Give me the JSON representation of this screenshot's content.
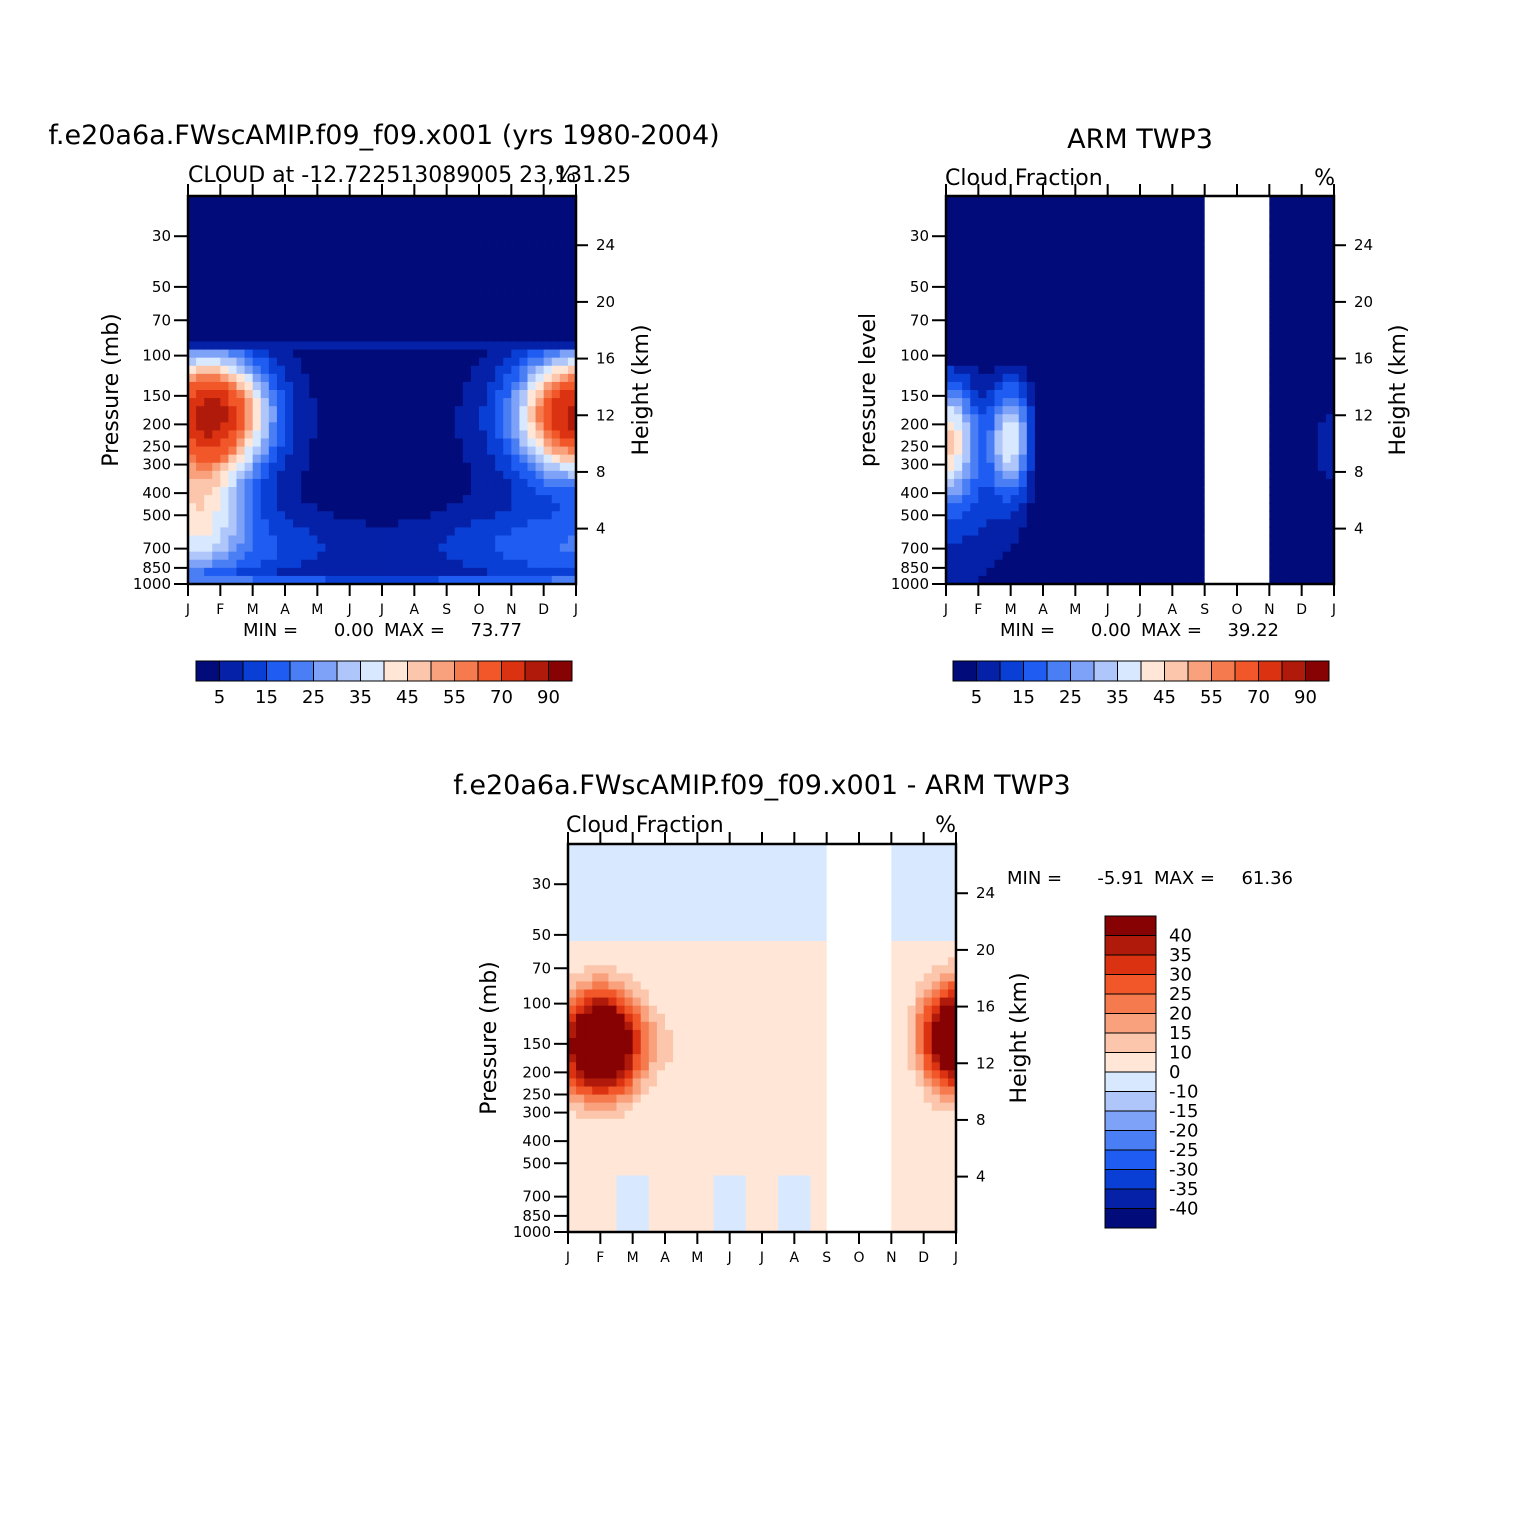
{
  "colors": {
    "seq": [
      "#020b7a",
      "#0421a8",
      "#0a3fd6",
      "#1f5cf2",
      "#4a7ef5",
      "#7ea2f7",
      "#aec6fa",
      "#d8e8fe",
      "#ffe6d6",
      "#fcc6ac",
      "#f9a07c",
      "#f57b4f",
      "#f2572a",
      "#db3312",
      "#b01a0a",
      "#870202"
    ],
    "diff": [
      "#870202",
      "#b01a0a",
      "#db3312",
      "#f2572a",
      "#f57b4f",
      "#f9a07c",
      "#fcc6ac",
      "#ffe6d6",
      "#d8e8fe",
      "#aec6fa",
      "#7ea2f7",
      "#4a7ef5",
      "#1f5cf2",
      "#0a3fd6",
      "#0421a8",
      "#020b7a"
    ]
  },
  "chart_data": [
    {
      "type": "heatmap",
      "id": "model",
      "title": "f.e20a6a.FWscAMIP.f09_f09.x001 (yrs 1980-2004)",
      "subtitle": "CLOUD at -12.722513089005 23,131.25",
      "units_label": "%",
      "ylabel": "Pressure (mb)",
      "ylabel_right": "Height (km)",
      "x_ticks": [
        "J",
        "F",
        "M",
        "A",
        "M",
        "J",
        "J",
        "A",
        "S",
        "O",
        "N",
        "D",
        "J"
      ],
      "y_ticks": [
        "30",
        "50",
        "70",
        "100",
        "150",
        "200",
        "250",
        "300",
        "400",
        "500",
        "700",
        "850",
        "1000"
      ],
      "y_ticks_right": [
        "24",
        "20",
        "16",
        "12",
        "8",
        "4"
      ],
      "min_label": "MIN =",
      "min_value": "0.00",
      "max_label": "MAX =",
      "max_value": "73.77",
      "colorbar_labels": [
        "5",
        "15",
        "25",
        "35",
        "45",
        "55",
        "70",
        "90"
      ],
      "missing_months": [],
      "annotations": [
        {
          "month": 0.7,
          "p": 180,
          "amplitude": 72,
          "width": 1.6
        },
        {
          "month": 12.0,
          "p": 180,
          "amplitude": 70,
          "width": 1.6
        },
        {
          "month": 0.3,
          "p": 450,
          "amplitude": 30,
          "width": 1.4
        }
      ]
    },
    {
      "type": "heatmap",
      "id": "obs",
      "title": "ARM TWP3",
      "subtitle": "Cloud Fraction",
      "units_label": "%",
      "ylabel": "pressure level",
      "ylabel_right": "Height (km)",
      "x_ticks": [
        "J",
        "F",
        "M",
        "A",
        "M",
        "J",
        "J",
        "A",
        "S",
        "O",
        "N",
        "D",
        "J"
      ],
      "y_ticks": [
        "30",
        "50",
        "70",
        "100",
        "150",
        "200",
        "250",
        "300",
        "400",
        "500",
        "700",
        "850",
        "1000"
      ],
      "y_ticks_right": [
        "24",
        "20",
        "16",
        "12",
        "8",
        "4"
      ],
      "min_label": "MIN =",
      "min_value": "0.00",
      "max_label": "MAX =",
      "max_value": "39.22",
      "colorbar_labels": [
        "5",
        "15",
        "25",
        "35",
        "45",
        "55",
        "70",
        "90"
      ],
      "missing_months": [
        8,
        10
      ],
      "annotations": [
        {
          "month": 0.1,
          "p": 230,
          "amplitude": 38,
          "width": 0.8
        },
        {
          "month": 2.0,
          "p": 230,
          "amplitude": 35,
          "width": 0.6
        },
        {
          "month": 12.0,
          "p": 240,
          "amplitude": 36,
          "width": 0.9
        }
      ]
    },
    {
      "type": "heatmap",
      "id": "diff",
      "title": "f.e20a6a.FWscAMIP.f09_f09.x001 - ARM TWP3",
      "subtitle": "Cloud Fraction",
      "units_label": "%",
      "ylabel": "Pressure (mb)",
      "ylabel_right": "Height (km)",
      "x_ticks": [
        "J",
        "F",
        "M",
        "A",
        "M",
        "J",
        "J",
        "A",
        "S",
        "O",
        "N",
        "D",
        "J"
      ],
      "y_ticks": [
        "30",
        "50",
        "70",
        "100",
        "150",
        "200",
        "250",
        "300",
        "400",
        "500",
        "700",
        "850",
        "1000"
      ],
      "y_ticks_right": [
        "24",
        "20",
        "16",
        "12",
        "8",
        "4"
      ],
      "min_label": "MIN =",
      "min_value": "-5.91",
      "max_label": "MAX =",
      "max_value": "61.36",
      "colorbar_labels": [
        "40",
        "35",
        "30",
        "25",
        "20",
        "15",
        "10",
        "0",
        "-10",
        "-15",
        "-20",
        "-25",
        "-30",
        "-35",
        "-40"
      ],
      "missing_months": [
        8,
        10
      ],
      "annotations": [
        {
          "month": 1.0,
          "p": 150,
          "amplitude": 61,
          "width": 1.3
        },
        {
          "month": 12.0,
          "p": 140,
          "amplitude": 58,
          "width": 1.1
        }
      ]
    }
  ]
}
